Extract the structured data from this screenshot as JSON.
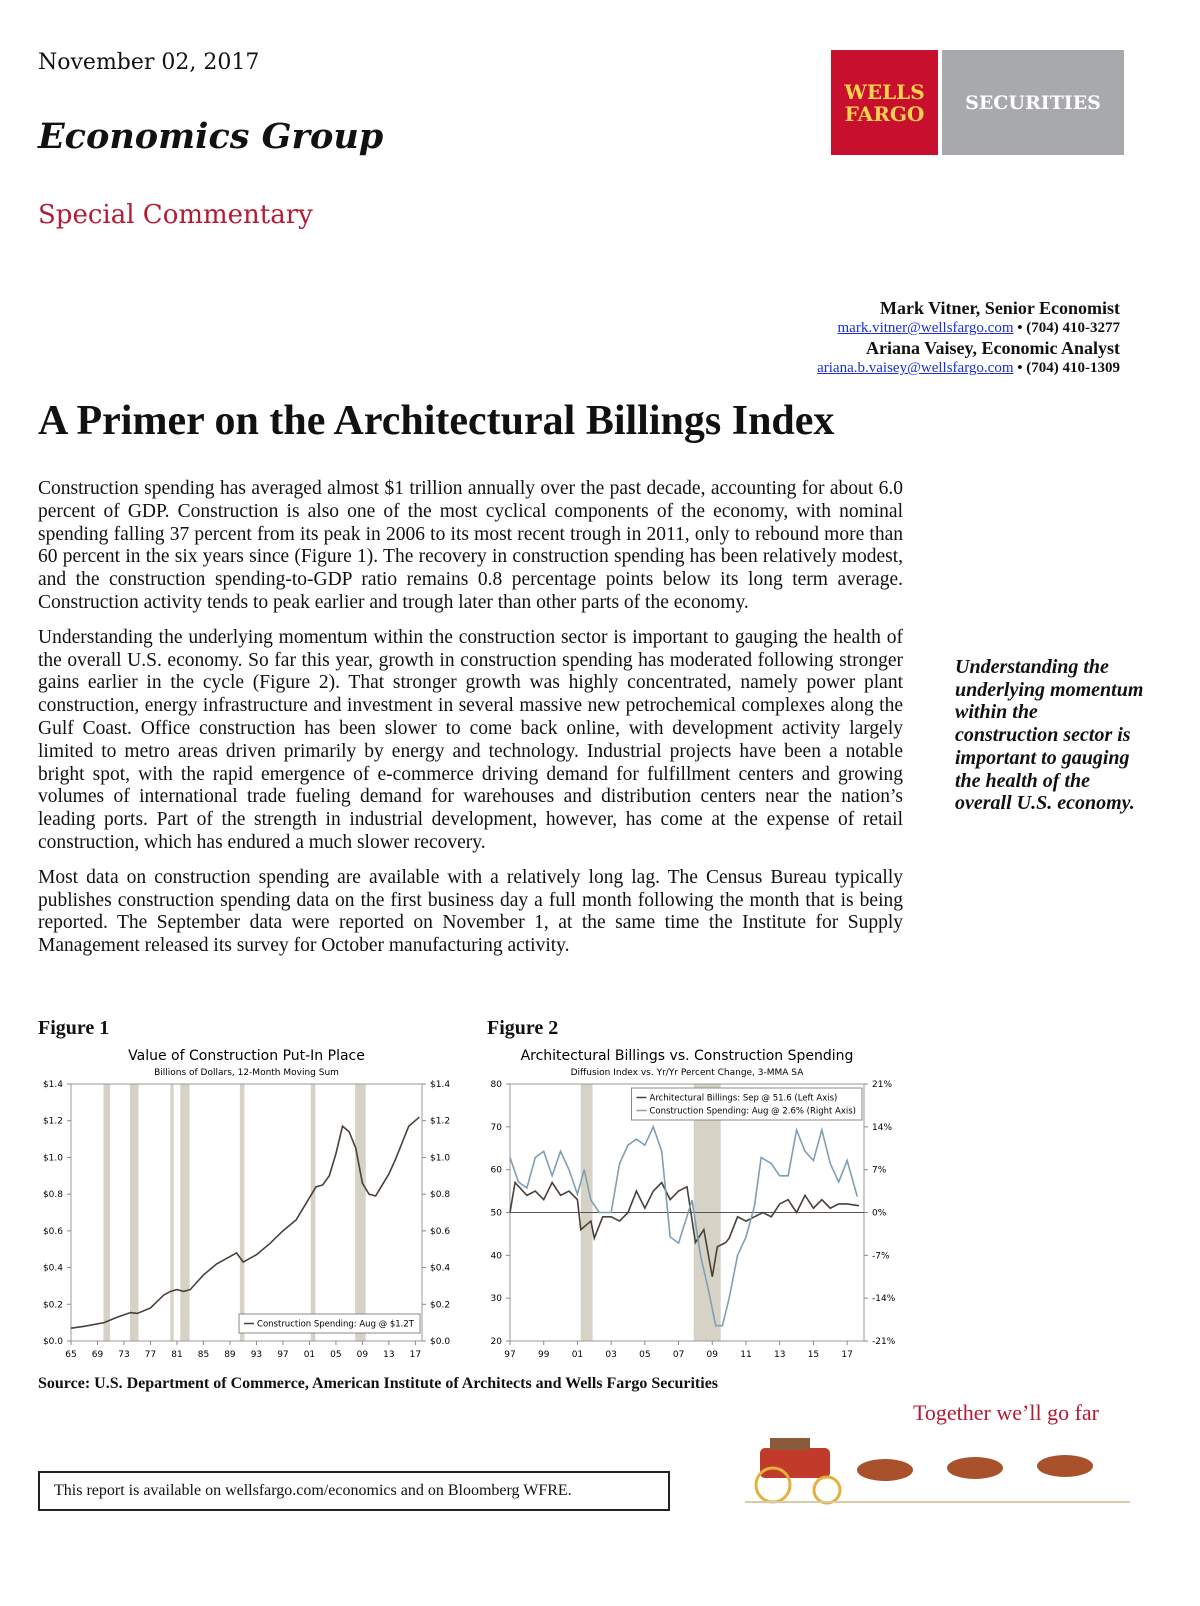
{
  "header": {
    "date": "November 02, 2017",
    "group": "Economics Group",
    "report_type": "Special Commentary",
    "logo": {
      "line1": "WELLS",
      "line2": "FARGO",
      "securities": "SECURITIES",
      "brand_red": "#c8102e",
      "brand_gold": "#ffd24f",
      "brand_gray": "#a7a9ac"
    }
  },
  "authors": [
    {
      "name": "Mark Vitner, Senior Economist",
      "email": "mark.vitner@wellsfargo.com",
      "phone": " • (704) 410-3277"
    },
    {
      "name": "Ariana Vaisey, Economic Analyst",
      "email": "ariana.b.vaisey@wellsfargo.com",
      "phone": " • (704) 410-1309"
    }
  ],
  "title": "A Primer on the Architectural Billings Index",
  "paragraphs": [
    "Construction spending has averaged almost $1 trillion annually over the past decade, accounting for about 6.0 percent of GDP. Construction is also one of the most cyclical components of the economy, with nominal spending falling 37 percent from its peak in 2006 to its most recent trough in 2011, only to rebound more than 60 percent in the six years since (Figure 1). The recovery in construction spending has been relatively modest, and the construction spending-to-GDP ratio remains 0.8 percentage points below its long term average. Construction activity tends to peak earlier and trough later than other parts of the economy.",
    "Understanding the underlying momentum within the construction sector is important to gauging the health of the overall U.S. economy. So far this year, growth in construction spending has moderated following stronger gains earlier in the cycle (Figure 2). That stronger growth was highly concentrated, namely power plant construction, energy infrastructure and investment in several massive new petrochemical complexes along the Gulf Coast. Office construction has been slower to come back online, with development activity largely limited to metro areas driven primarily by energy and technology. Industrial projects have been a notable bright spot, with the rapid emergence of e-commerce driving demand for fulfillment centers and growing volumes of international trade fueling demand for warehouses and distribution centers near the nation’s leading ports.  Part of the strength in industrial development, however, has come at the expense of retail construction, which has endured a much slower recovery.",
    "Most data on construction spending are available with a relatively long lag. The Census Bureau typically publishes construction spending data on the first business day a full month following the month that is being reported.  The September data were reported on November 1, at the same time the Institute for Supply Management released its survey for October manufacturing activity."
  ],
  "pull_quote": "Understanding the underlying momentum within the construction sector is important to gauging the health of the overall U.S. economy.",
  "figures": {
    "fig1_label": "Figure 1",
    "fig2_label": "Figure 2"
  },
  "chart_data": [
    {
      "type": "line",
      "title": "Value of Construction Put-In Place",
      "subtitle": "Billions of Dollars, 12-Month Moving Sum",
      "ylim": [
        0,
        1.4
      ],
      "xlim": [
        1965,
        2018
      ],
      "yticks": [
        "$0.0",
        "$0.2",
        "$0.4",
        "$0.6",
        "$0.8",
        "$1.0",
        "$1.2",
        "$1.4"
      ],
      "xticks": [
        "65",
        "69",
        "73",
        "77",
        "81",
        "85",
        "89",
        "93",
        "97",
        "01",
        "05",
        "09",
        "13",
        "17"
      ],
      "recessions": [
        [
          1969.9,
          1970.9
        ],
        [
          1973.9,
          1975.2
        ],
        [
          1980.0,
          1980.5
        ],
        [
          1981.5,
          1982.9
        ],
        [
          1990.5,
          1991.2
        ],
        [
          2001.2,
          2001.9
        ],
        [
          2007.9,
          2009.5
        ]
      ],
      "series": [
        {
          "name": "Construction Spending: Aug @ $1.2T",
          "color": "#4a4037",
          "x": [
            1965,
            1967,
            1970,
            1972,
            1974,
            1975,
            1977,
            1979,
            1980,
            1981,
            1982,
            1983,
            1985,
            1987,
            1989,
            1990,
            1991,
            1993,
            1995,
            1997,
            1999,
            2000,
            2002,
            2003,
            2004,
            2005,
            2006,
            2007,
            2008,
            2009,
            2010,
            2011,
            2012,
            2013,
            2014,
            2015,
            2016,
            2017.6
          ],
          "values": [
            0.07,
            0.08,
            0.1,
            0.13,
            0.155,
            0.15,
            0.18,
            0.25,
            0.27,
            0.28,
            0.27,
            0.28,
            0.36,
            0.42,
            0.46,
            0.48,
            0.43,
            0.47,
            0.53,
            0.6,
            0.66,
            0.72,
            0.84,
            0.85,
            0.9,
            1.02,
            1.17,
            1.14,
            1.05,
            0.86,
            0.8,
            0.79,
            0.85,
            0.91,
            0.99,
            1.08,
            1.17,
            1.22
          ]
        }
      ],
      "legend": "bottom-right"
    },
    {
      "type": "line",
      "title": "Architectural Billings vs. Construction Spending",
      "subtitle": "Diffusion Index vs. Yr/Yr Percent Change, 3-MMA SA",
      "ylim": [
        20,
        80
      ],
      "y2lim": [
        -21,
        21
      ],
      "xlim": [
        1997,
        2018
      ],
      "yticks": [
        "20",
        "30",
        "40",
        "50",
        "60",
        "70",
        "80"
      ],
      "y2ticks": [
        "-21%",
        "-14%",
        "-7%",
        "0%",
        "7%",
        "14%",
        "21%"
      ],
      "xticks": [
        "97",
        "99",
        "01",
        "03",
        "05",
        "07",
        "09",
        "11",
        "13",
        "15",
        "17"
      ],
      "recessions": [
        [
          2001.2,
          2001.9
        ],
        [
          2007.9,
          2009.5
        ]
      ],
      "series": [
        {
          "name": "Architectural Billings: Sep @ 51.6 (Left Axis)",
          "color": "#4a4037",
          "axis": "left",
          "x": [
            1997,
            1997.3,
            1998,
            1998.5,
            1999,
            1999.5,
            2000,
            2000.5,
            2001,
            2001.2,
            2001.8,
            2002,
            2002.5,
            2003,
            2003.5,
            2004,
            2004.5,
            2005,
            2005.5,
            2006,
            2006.5,
            2007,
            2007.5,
            2008,
            2008.5,
            2009,
            2009.3,
            2009.8,
            2010,
            2010.5,
            2011,
            2011.5,
            2012,
            2012.5,
            2013,
            2013.5,
            2014,
            2014.5,
            2015,
            2015.5,
            2016,
            2016.5,
            2017,
            2017.7
          ],
          "values": [
            50,
            57,
            54,
            55,
            53,
            57,
            54,
            55,
            53,
            46,
            48,
            44,
            49,
            49,
            48,
            50,
            55,
            51,
            55,
            57,
            53,
            55,
            56,
            43,
            46,
            35,
            42,
            43,
            44,
            49,
            48,
            49,
            50,
            49,
            52,
            53,
            50,
            54,
            51,
            53,
            51,
            52,
            52,
            51.6
          ]
        },
        {
          "name": "Construction Spending: Aug @ 2.6% (Right Axis)",
          "color": "#7f9fb5",
          "axis": "right",
          "x": [
            1997,
            1997.5,
            1998,
            1998.5,
            1999,
            1999.5,
            2000,
            2000.5,
            2001,
            2001.4,
            2001.8,
            2002.3,
            2003,
            2003.5,
            2004,
            2004.5,
            2005,
            2005.5,
            2006,
            2006.5,
            2007,
            2007.8,
            2008.3,
            2008.8,
            2009.2,
            2009.6,
            2010,
            2010.5,
            2011,
            2011.5,
            2011.9,
            2012.5,
            2013,
            2013.5,
            2014,
            2014.5,
            2015,
            2015.5,
            2016,
            2016.5,
            2017,
            2017.6
          ],
          "values": [
            9,
            5,
            4,
            9,
            10,
            6,
            10,
            7,
            3,
            7,
            2,
            0,
            0,
            8,
            11,
            12,
            11,
            14,
            10,
            -4,
            -5,
            2,
            -7,
            -13,
            -18.5,
            -18.5,
            -14,
            -7,
            -4,
            1,
            9,
            8,
            6,
            6,
            13.5,
            10,
            8.5,
            13.5,
            8,
            5,
            8.5,
            2.6
          ]
        }
      ],
      "legend": "top-right"
    }
  ],
  "source": "Source:  U.S. Department of Commerce, American Institute of Architects and Wells Fargo Securities",
  "footer": {
    "tagline": "Together we’ll go far",
    "availability": "This report is available on wellsfargo.com/economics and on Bloomberg WFRE."
  }
}
